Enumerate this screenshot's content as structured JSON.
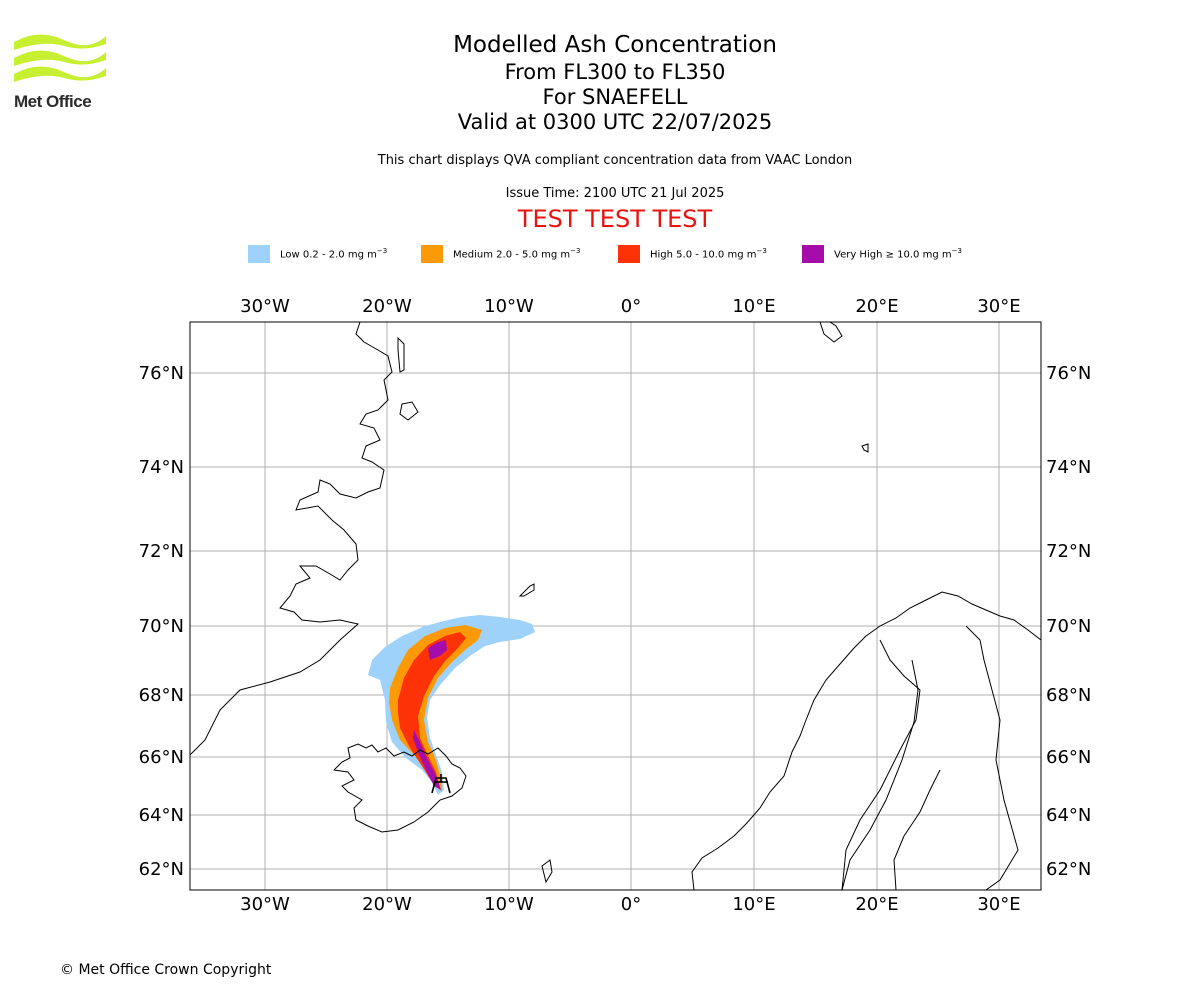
{
  "logo": {
    "text": "Met Office",
    "color": "#c8f032"
  },
  "title": {
    "main": "Modelled Ash Concentration",
    "levels": "From FL300 to FL350",
    "volcano": "For SNAEFELL",
    "valid": "Valid at 0300 UTC 22/07/2025",
    "note": "This chart displays QVA compliant concentration data from VAAC London",
    "issue": "Issue Time: 2100 UTC 21 Jul 2025",
    "test": "TEST TEST TEST"
  },
  "legend": [
    {
      "label": "Low 0.2 - 2.0 mg m",
      "color": "#9fd2fa"
    },
    {
      "label": "Medium 2.0 - 5.0 mg m",
      "color": "#fb9a06"
    },
    {
      "label": "High 5.0 - 10.0 mg m",
      "color": "#fd3207"
    },
    {
      "label": "Very High ≥ 10.0 mg m",
      "color": "#a50dab"
    }
  ],
  "legend_unit_exponent": "−3",
  "map": {
    "lon_labels": [
      "30°W",
      "20°W",
      "10°W",
      "0°",
      "10°E",
      "20°E",
      "30°E"
    ],
    "lat_labels": [
      "76°N",
      "74°N",
      "72°N",
      "70°N",
      "68°N",
      "66°N",
      "64°N",
      "62°N"
    ],
    "volcano_marker": "volcano-icon"
  },
  "copyright": "© Met Office Crown Copyright"
}
